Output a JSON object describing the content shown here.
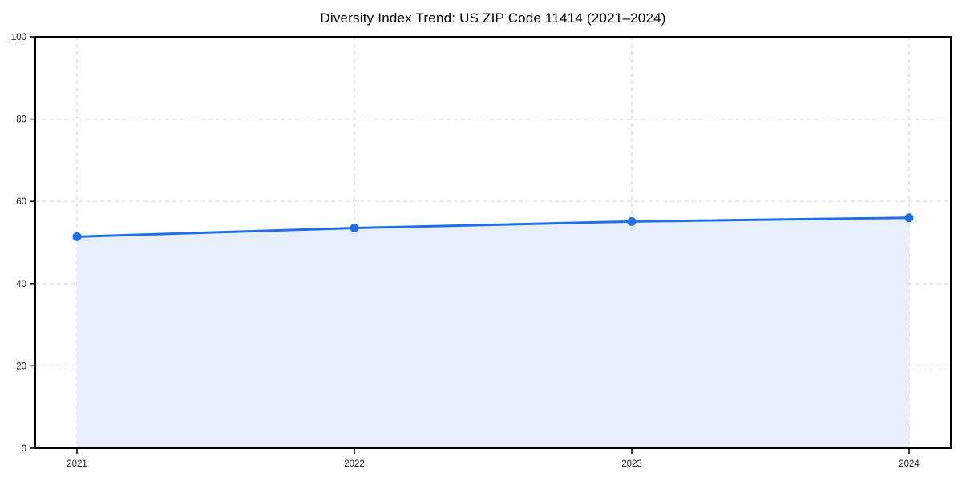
{
  "chart_data": {
    "type": "line",
    "title": "Diversity Index Trend: US ZIP Code 11414 (2021–2024)",
    "categories": [
      "2021",
      "2022",
      "2023",
      "2024"
    ],
    "series": [
      {
        "name": "Diversity Index",
        "values": [
          51.4,
          53.5,
          55.1,
          56.0
        ]
      }
    ],
    "xlabel": "",
    "ylabel": "",
    "ylim": [
      0,
      100
    ],
    "yticks": [
      0,
      20,
      40,
      60,
      80,
      100
    ],
    "grid": true,
    "grid_style": "dashed",
    "legend_position": "none",
    "marker": "circle",
    "area_fill": true,
    "colors": {
      "line": "#1f6fe8",
      "marker": "#1f6fe8",
      "fill": "#e8effc",
      "grid": "#d9d9d9",
      "axis": "#000000",
      "tick_text": "#1a1a1a",
      "background": "#ffffff"
    }
  }
}
